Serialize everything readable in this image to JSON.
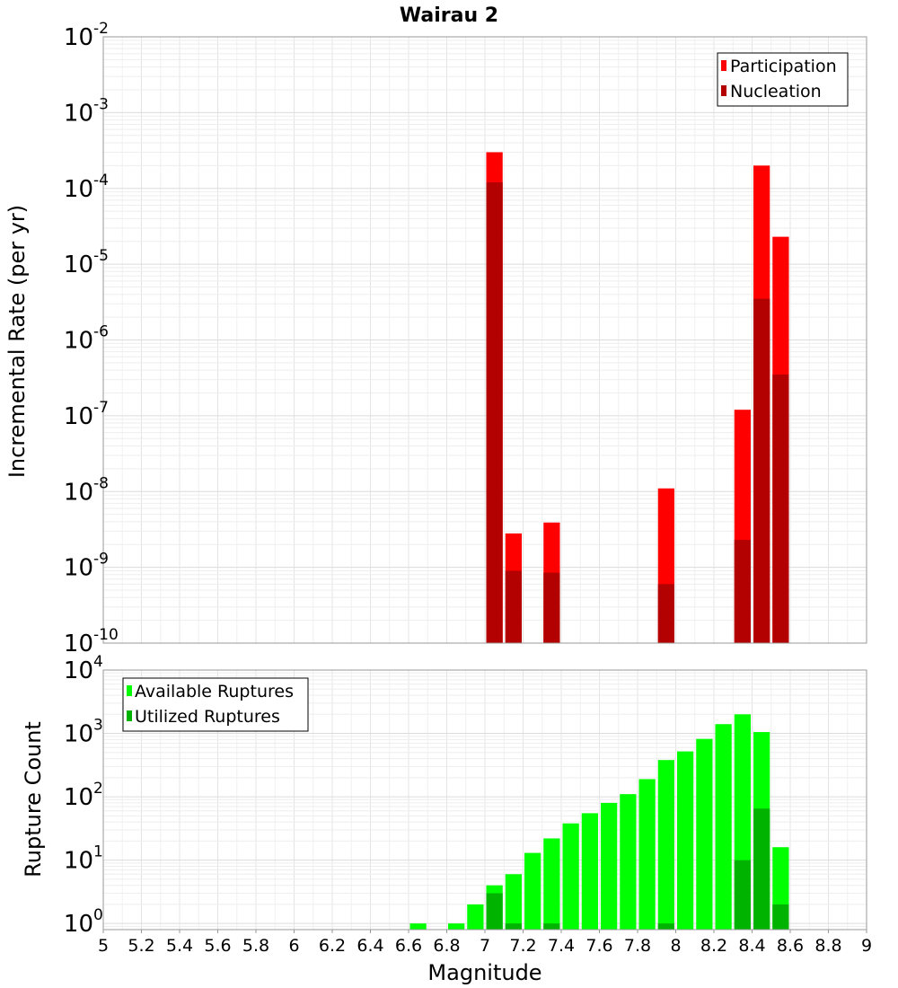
{
  "title": "Wairau 2",
  "x_axis": {
    "label": "Magnitude",
    "range": [
      5,
      9
    ],
    "tick_labels": [
      "5",
      "5.2",
      "5.4",
      "5.6",
      "5.8",
      "6",
      "6.2",
      "6.4",
      "6.6",
      "6.8",
      "7",
      "7.2",
      "7.4",
      "7.6",
      "7.8",
      "8",
      "8.2",
      "8.4",
      "8.6",
      "8.8",
      "9"
    ]
  },
  "chart_data": [
    {
      "type": "bar",
      "ylabel": "Incremental Rate (per yr)",
      "xlabel": "Magnitude",
      "y_scale": "log",
      "ylim": [
        1e-10,
        0.01
      ],
      "y_tick_labels": [
        {
          "base": "10",
          "exp": "-2"
        },
        {
          "base": "10",
          "exp": "-3"
        },
        {
          "base": "10",
          "exp": "-4"
        },
        {
          "base": "10",
          "exp": "-5"
        },
        {
          "base": "10",
          "exp": "-6"
        },
        {
          "base": "10",
          "exp": "-7"
        },
        {
          "base": "10",
          "exp": "-8"
        },
        {
          "base": "10",
          "exp": "-9"
        },
        {
          "base": "10",
          "exp": "-10"
        }
      ],
      "bar_width": 0.1,
      "legend_position": "top-right",
      "grid": true,
      "series": [
        {
          "name": "Participation",
          "color": "#ff0000",
          "x": [
            7.05,
            7.15,
            7.35,
            7.95,
            8.35,
            8.45,
            8.55
          ],
          "values": [
            0.0003,
            2.8e-09,
            3.9e-09,
            1.1e-08,
            1.2e-07,
            0.0002,
            2.3e-05
          ]
        },
        {
          "name": "Nucleation",
          "color": "#b30000",
          "x": [
            7.05,
            7.15,
            7.35,
            7.95,
            8.35,
            8.45,
            8.55
          ],
          "values": [
            0.00012,
            9e-10,
            8.5e-10,
            6e-10,
            2.3e-09,
            3.5e-06,
            3.5e-07
          ]
        }
      ]
    },
    {
      "type": "bar",
      "ylabel": "Rupture Count",
      "xlabel": "Magnitude",
      "y_scale": "log",
      "ylim": [
        0.8,
        10000
      ],
      "y_tick_labels": [
        {
          "base": "10",
          "exp": "4"
        },
        {
          "base": "10",
          "exp": "3"
        },
        {
          "base": "10",
          "exp": "2"
        },
        {
          "base": "10",
          "exp": "1"
        },
        {
          "base": "10",
          "exp": "0"
        }
      ],
      "bar_width": 0.1,
      "legend_position": "top-left",
      "grid": true,
      "series": [
        {
          "name": "Available Ruptures",
          "color": "#00ff00",
          "x": [
            6.65,
            6.85,
            6.95,
            7.05,
            7.15,
            7.25,
            7.35,
            7.45,
            7.55,
            7.65,
            7.75,
            7.85,
            7.95,
            8.05,
            8.15,
            8.25,
            8.35,
            8.45,
            8.55
          ],
          "values": [
            1,
            1,
            2,
            4,
            6,
            13,
            22,
            38,
            55,
            80,
            110,
            190,
            380,
            520,
            820,
            1400,
            2000,
            1050,
            16
          ]
        },
        {
          "name": "Utilized Ruptures",
          "color": "#00b300",
          "x": [
            7.05,
            7.15,
            7.35,
            7.95,
            8.35,
            8.45,
            8.55
          ],
          "values": [
            3,
            1,
            1,
            1,
            10,
            65,
            2
          ]
        }
      ]
    }
  ]
}
